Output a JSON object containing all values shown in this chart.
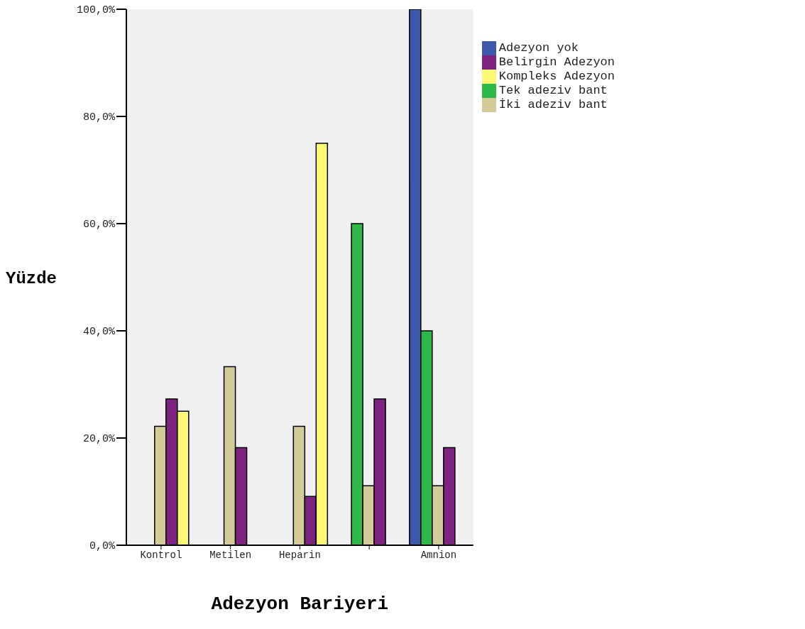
{
  "chart_data": {
    "type": "bar",
    "xlabel": "Adezyon Bariyeri",
    "ylabel": "Yüzde",
    "categories": [
      "Kontrol",
      "Metilen",
      "Heparin",
      null,
      "Amnion"
    ],
    "series": [
      {
        "name": "Adezyon yok",
        "color": "#3e58ac",
        "values": [
          0,
          0,
          0,
          0,
          100
        ]
      },
      {
        "name": "Tek adeziv bant",
        "color": "#2eb848",
        "values": [
          0,
          0,
          0,
          60,
          40
        ]
      },
      {
        "name": "İki adeziv bant",
        "color": "#d4cc98",
        "values": [
          22.2,
          33.3,
          22.2,
          11.1,
          11.1
        ]
      },
      {
        "name": "Belirgin Adezyon",
        "color": "#7c2480",
        "values": [
          27.3,
          18.2,
          9.1,
          27.3,
          18.2
        ]
      },
      {
        "name": "Kompleks Adezyon",
        "color": "#fbf873",
        "values": [
          25,
          0,
          75,
          0,
          0
        ]
      }
    ],
    "ylim": [
      0,
      100
    ],
    "yticks": [
      {
        "value": 0,
        "label": "0,0%"
      },
      {
        "value": 20,
        "label": "20,0%"
      },
      {
        "value": 40,
        "label": "40,0%"
      },
      {
        "value": 60,
        "label": "60,0%"
      },
      {
        "value": 80,
        "label": "80,0%"
      },
      {
        "value": 100,
        "label": "100,0%"
      }
    ],
    "grid": false,
    "legend": "top right"
  }
}
